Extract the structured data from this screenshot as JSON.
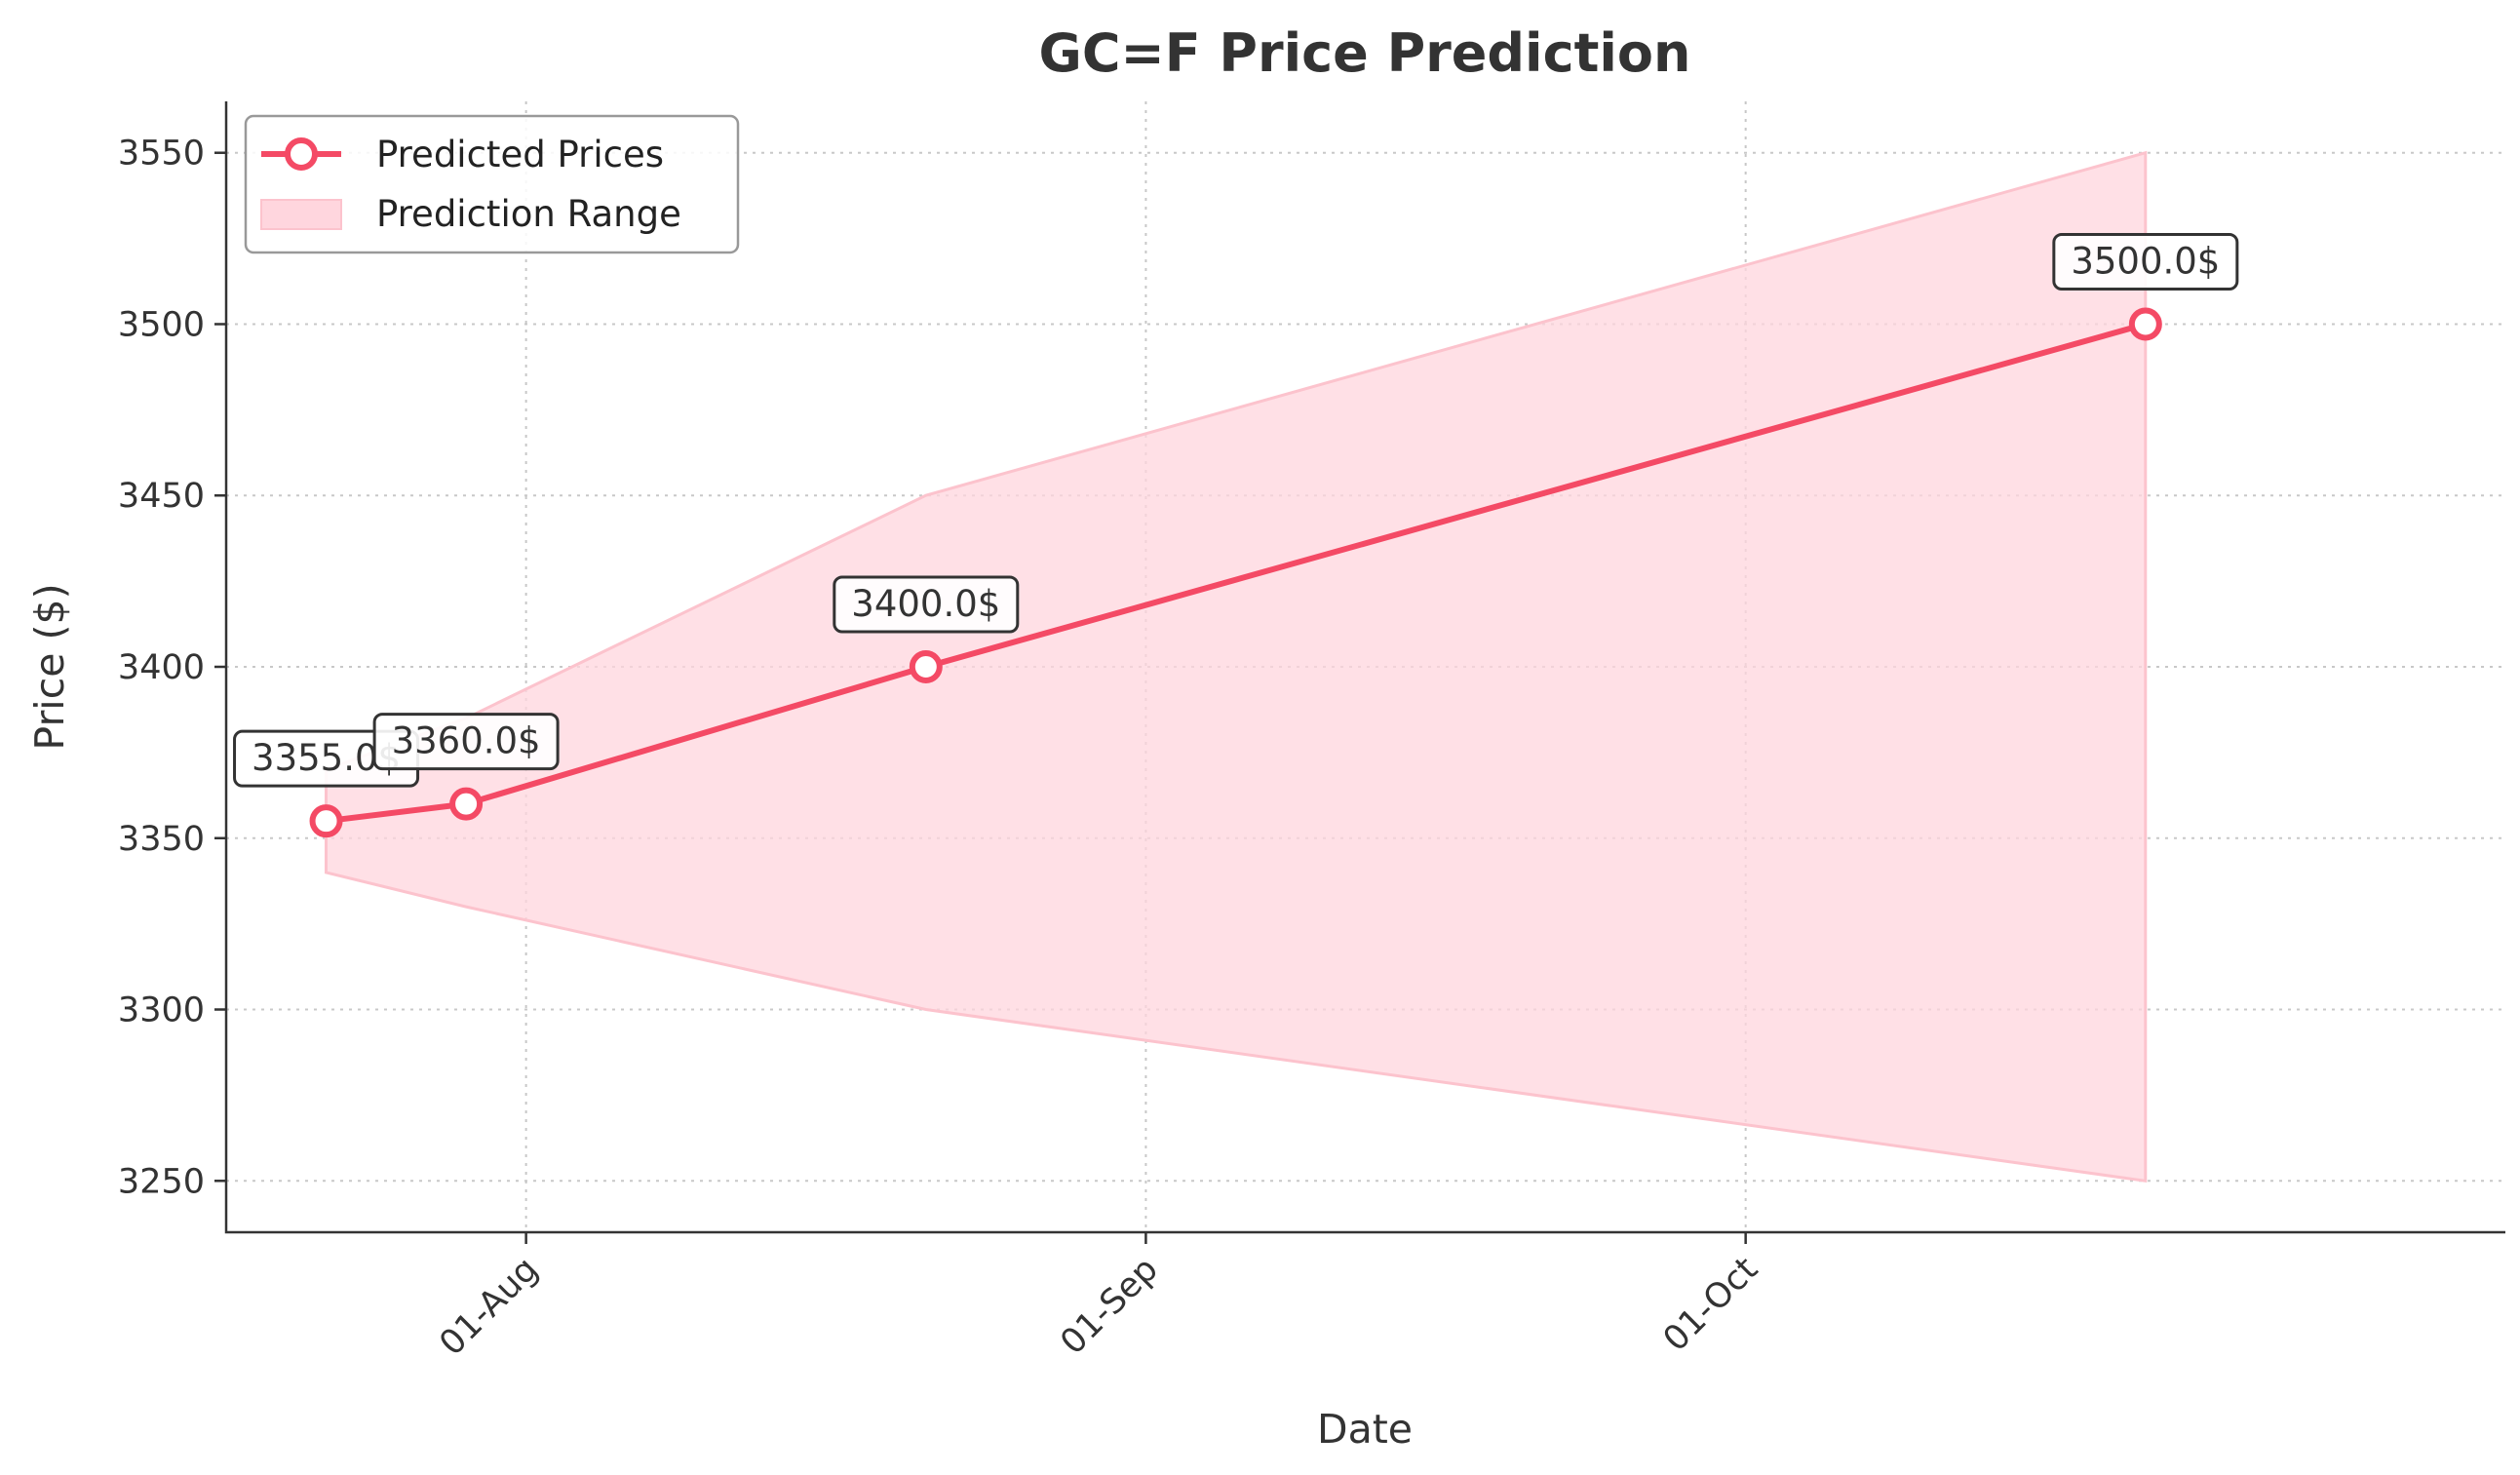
{
  "chart_data": {
    "type": "line",
    "title": "GC=F Price Prediction",
    "xlabel": "Date",
    "ylabel": "Price ($)",
    "x_ticks": [
      {
        "date": "2025-08-01",
        "label": "01-Aug"
      },
      {
        "date": "2025-09-01",
        "label": "01-Sep"
      },
      {
        "date": "2025-10-01",
        "label": "01-Oct"
      }
    ],
    "y_ticks": [
      3250,
      3300,
      3350,
      3400,
      3450,
      3500,
      3550
    ],
    "xlim": [
      "2025-07-17",
      "2025-11-08"
    ],
    "ylim": [
      3235,
      3565
    ],
    "grid": true,
    "legend_position": "upper-left",
    "series": [
      {
        "name": "Predicted Prices",
        "color": "#f44a65",
        "points": [
          {
            "x": "2025-07-22",
            "y": 3355.0,
            "label": "3355.0$"
          },
          {
            "x": "2025-07-29",
            "y": 3360.0,
            "label": "3360.0$"
          },
          {
            "x": "2025-08-21",
            "y": 3400.0,
            "label": "3400.0$"
          },
          {
            "x": "2025-10-21",
            "y": 3500.0,
            "label": "3500.0$"
          }
        ]
      }
    ],
    "range": {
      "name": "Prediction Range",
      "color": "#ffd6de",
      "points": [
        {
          "x": "2025-07-22",
          "low": 3340,
          "high": 3370
        },
        {
          "x": "2025-07-29",
          "low": 3330,
          "high": 3385
        },
        {
          "x": "2025-08-21",
          "low": 3300,
          "high": 3450
        },
        {
          "x": "2025-10-21",
          "low": 3250,
          "high": 3550
        }
      ]
    }
  }
}
